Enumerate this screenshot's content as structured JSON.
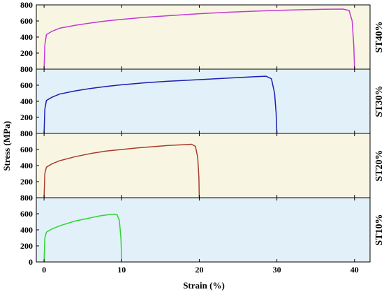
{
  "chart_data": {
    "type": "line",
    "xlabel": "Strain (%)",
    "ylabel": "Stress (MPa)",
    "xlim": [
      -1,
      42
    ],
    "x_ticks": [
      0,
      10,
      20,
      30,
      40
    ],
    "y_ticks": [
      0,
      200,
      400,
      600,
      800
    ],
    "y_tick_labels": [
      "0",
      "200",
      "400",
      "600",
      "800"
    ],
    "x_tick_labels": [
      "0",
      "10",
      "20",
      "30",
      "40"
    ],
    "panels": [
      {
        "label": "ST40%",
        "ylim": [
          0,
          800
        ],
        "background": "#f8f6e2",
        "color": "#c238d8",
        "points": [
          [
            0,
            0
          ],
          [
            0.1,
            300
          ],
          [
            0.3,
            430
          ],
          [
            1,
            470
          ],
          [
            2,
            510
          ],
          [
            4,
            545
          ],
          [
            6,
            575
          ],
          [
            8,
            600
          ],
          [
            10,
            620
          ],
          [
            13,
            645
          ],
          [
            16,
            665
          ],
          [
            20,
            690
          ],
          [
            24,
            710
          ],
          [
            28,
            725
          ],
          [
            32,
            737
          ],
          [
            36,
            745
          ],
          [
            38.5,
            748
          ],
          [
            39.3,
            730
          ],
          [
            39.7,
            600
          ],
          [
            39.9,
            300
          ],
          [
            40,
            0
          ]
        ]
      },
      {
        "label": "ST30%",
        "ylim": [
          0,
          800
        ],
        "background": "#e2f0fa",
        "color": "#1c1cb0",
        "points": [
          [
            0,
            0
          ],
          [
            0.1,
            300
          ],
          [
            0.3,
            410
          ],
          [
            1,
            450
          ],
          [
            2,
            490
          ],
          [
            4,
            530
          ],
          [
            6,
            560
          ],
          [
            8,
            585
          ],
          [
            10,
            605
          ],
          [
            13,
            630
          ],
          [
            16,
            650
          ],
          [
            20,
            670
          ],
          [
            24,
            690
          ],
          [
            27,
            705
          ],
          [
            28.6,
            712
          ],
          [
            29.3,
            680
          ],
          [
            29.7,
            500
          ],
          [
            29.9,
            250
          ],
          [
            30,
            0
          ]
        ]
      },
      {
        "label": "ST20%",
        "ylim": [
          0,
          800
        ],
        "background": "#f8f6e2",
        "color": "#a83c2c",
        "points": [
          [
            0,
            0
          ],
          [
            0.1,
            300
          ],
          [
            0.3,
            380
          ],
          [
            1,
            420
          ],
          [
            2,
            460
          ],
          [
            4,
            510
          ],
          [
            6,
            550
          ],
          [
            8,
            580
          ],
          [
            10,
            600
          ],
          [
            12,
            620
          ],
          [
            14,
            635
          ],
          [
            16,
            650
          ],
          [
            18,
            660
          ],
          [
            19,
            665
          ],
          [
            19.5,
            640
          ],
          [
            19.8,
            500
          ],
          [
            19.95,
            250
          ],
          [
            20,
            0
          ]
        ]
      },
      {
        "label": "ST10%",
        "ylim": [
          0,
          800
        ],
        "background": "#e2f0fa",
        "color": "#2ed42e",
        "points": [
          [
            0,
            0
          ],
          [
            0.1,
            300
          ],
          [
            0.3,
            370
          ],
          [
            1,
            410
          ],
          [
            2,
            450
          ],
          [
            3,
            480
          ],
          [
            4,
            510
          ],
          [
            5,
            530
          ],
          [
            6,
            550
          ],
          [
            7,
            570
          ],
          [
            8,
            585
          ],
          [
            9,
            595
          ],
          [
            9.4,
            590
          ],
          [
            9.7,
            520
          ],
          [
            9.9,
            300
          ],
          [
            10,
            0
          ]
        ]
      }
    ]
  }
}
